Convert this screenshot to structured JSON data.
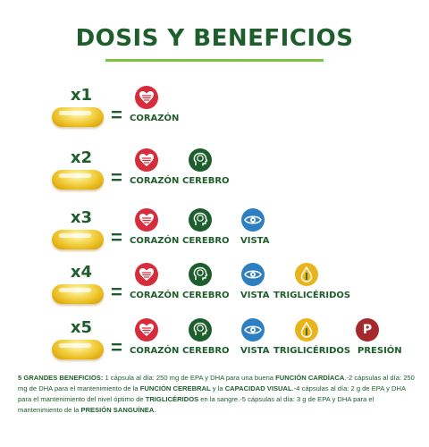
{
  "title": "DOSIS Y BENEFICIOS",
  "colors": {
    "dark_green": "#1e5e2c",
    "light_green": "#7cc242",
    "corazon": "#d72c3b",
    "cerebro": "#1e5e2c",
    "vista": "#2e7fc1",
    "trigliceridos": "#e8b41c",
    "presion": "#a5282c"
  },
  "equals_sign": "=",
  "benefit_labels": {
    "corazon": "CORAZÓN",
    "cerebro": "CEREBRO",
    "vista": "VISTA",
    "trigliceridos": "TRIGLICÉRIDOS",
    "presion": "PRESIÓN"
  },
  "icons": {
    "corazon": "heart-icon",
    "cerebro": "head-brain-icon",
    "vista": "eye-icon",
    "trigliceridos": "drop-icon",
    "presion": "letter-p-icon",
    "presion_letter": "P"
  },
  "rows": [
    {
      "multiplier": "x1"
    },
    {
      "multiplier": "x2"
    },
    {
      "multiplier": "x3"
    },
    {
      "multiplier": "x4"
    },
    {
      "multiplier": "x5"
    }
  ],
  "footer": {
    "t1": "5 GRANDES BENEFICIOS:",
    "t2": " 1 cápsula al día: 250 mg de EPA y DHA para una buena ",
    "t3": "FUNCIÓN CARDÍACA",
    "t4": ".-2 cápsulas al día: 250 mg de DHA para el mantenimiento de la ",
    "t5": "FUNCIÓN CEREBRAL",
    "t6": " y la ",
    "t7": "CAPACIDAD VISUAL",
    "t8": ".-4 cápsulas al día: 2 g de EPA y DHA para el mantenimiento del nivel óptimo de ",
    "t9": "TRIGLICÉRIDOS",
    "t10": " en la sangre.-5 cápsulas al día: 3 g de EPA y DHA para el mantenimiento de la ",
    "t11": "PRESIÓN SANGUÍNEA",
    "t12": "."
  }
}
